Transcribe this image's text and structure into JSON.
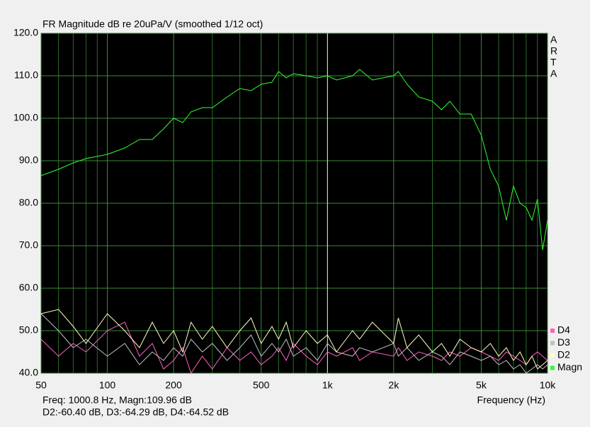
{
  "chart_data": {
    "type": "line",
    "title": "FR Magnitude dB re 20uPa/V (smoothed 1/12 oct)",
    "side_label": [
      "A",
      "R",
      "T",
      "A"
    ],
    "xlabel": "Frequency (Hz)",
    "readout": [
      "Freq: 1000.8 Hz, Magn:109.96 dB",
      "D2:-60.40 dB, D3:-64.29 dB, D4:-64.52 dB"
    ],
    "cursor": 1000.8,
    "xlog": true,
    "grid": true,
    "xlim": [
      50,
      10000
    ],
    "ylim": [
      40,
      120
    ],
    "xticks": [
      50,
      100,
      200,
      500,
      {
        "value": 1000,
        "label": "1k"
      },
      {
        "value": 2000,
        "label": "2k"
      },
      {
        "value": 5000,
        "label": "5k"
      },
      {
        "value": 10000,
        "label": "10k"
      }
    ],
    "xminor": [
      60,
      70,
      80,
      90,
      300,
      400,
      600,
      700,
      800,
      900,
      3000,
      4000,
      6000,
      7000,
      8000,
      9000
    ],
    "yticks": [
      {
        "value": 40,
        "label": "40.0"
      },
      {
        "value": 50,
        "label": "50.0"
      },
      {
        "value": 60,
        "label": "60.0"
      },
      {
        "value": 70,
        "label": "70.0"
      },
      {
        "value": 80,
        "label": "80.0"
      },
      {
        "value": 90,
        "label": "90.0"
      },
      {
        "value": 100,
        "label": "100.0"
      },
      {
        "value": 110,
        "label": "110.0"
      },
      {
        "value": 120,
        "label": "120.0"
      }
    ],
    "x": [
      50,
      60,
      70,
      80,
      100,
      120,
      140,
      160,
      180,
      200,
      220,
      240,
      270,
      300,
      350,
      400,
      450,
      500,
      560,
      600,
      650,
      700,
      800,
      900,
      1000,
      1100,
      1300,
      1400,
      1600,
      2000,
      2100,
      2300,
      2600,
      3000,
      3300,
      3600,
      4000,
      4500,
      5000,
      5500,
      6000,
      6500,
      7000,
      7500,
      8000,
      8500,
      9000,
      9500,
      10000
    ],
    "series": [
      {
        "name": "D4",
        "color": "#ff60c0",
        "values": [
          48,
          44,
          47,
          45,
          50,
          52,
          44,
          47,
          41,
          43,
          46,
          40,
          44,
          41,
          46,
          43,
          45,
          42,
          44,
          46,
          43,
          47,
          44,
          42,
          45,
          44,
          46,
          43,
          45,
          44,
          46,
          43,
          45,
          44,
          43,
          45,
          44,
          46,
          45,
          44,
          43,
          45,
          44,
          43,
          42,
          44,
          45,
          44,
          43
        ]
      },
      {
        "name": "D3",
        "color": "#c0c0c0",
        "values": [
          54,
          50,
          46,
          48,
          44,
          47,
          42,
          45,
          43,
          46,
          44,
          48,
          45,
          47,
          43,
          46,
          49,
          44,
          47,
          45,
          48,
          44,
          46,
          43,
          47,
          45,
          44,
          46,
          45,
          47,
          44,
          46,
          43,
          45,
          44,
          42,
          45,
          44,
          43,
          44,
          42,
          43,
          41,
          42,
          40,
          41,
          42,
          41,
          42
        ]
      },
      {
        "name": "D2",
        "color": "#ffffc0",
        "values": [
          54,
          55,
          51,
          47,
          54,
          50,
          46,
          52,
          47,
          50,
          45,
          52,
          48,
          51,
          46,
          50,
          53,
          47,
          51,
          48,
          52,
          46,
          50,
          47,
          49,
          45,
          50,
          48,
          52,
          47,
          53,
          46,
          49,
          45,
          47,
          44,
          48,
          46,
          45,
          47,
          44,
          46,
          43,
          45,
          42,
          44,
          41,
          42,
          43
        ]
      },
      {
        "name": "Magn",
        "color": "#30ff30",
        "values": [
          86.5,
          88,
          89.5,
          90.5,
          91.5,
          93,
          95,
          95,
          97.5,
          100,
          99,
          101.5,
          102.5,
          102.5,
          105,
          107,
          106.5,
          108,
          108.5,
          111,
          109.5,
          110.5,
          110,
          109.5,
          110,
          109,
          110,
          111.5,
          109,
          110,
          111,
          108,
          105,
          104,
          102,
          104,
          101,
          101,
          96,
          88,
          84,
          76,
          84,
          80,
          79,
          76,
          81,
          69,
          76
        ]
      }
    ]
  }
}
